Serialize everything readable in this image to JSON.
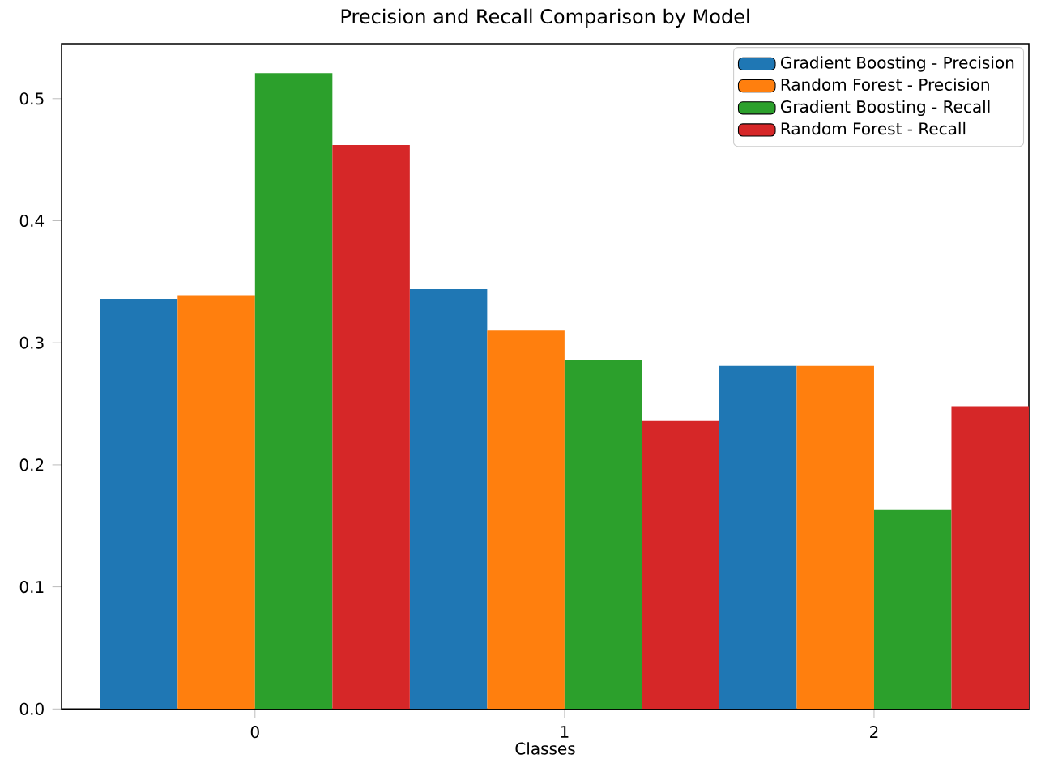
{
  "chart_data": {
    "type": "bar",
    "title": "Precision and Recall Comparison by Model",
    "xlabel": "Classes",
    "categories": [
      "0",
      "1",
      "2"
    ],
    "series": [
      {
        "name": "Gradient Boosting - Precision",
        "color": "#1f77b4",
        "values": [
          0.336,
          0.344,
          0.281
        ]
      },
      {
        "name": "Random Forest - Precision",
        "color": "#ff7f0e",
        "values": [
          0.339,
          0.31,
          0.281
        ]
      },
      {
        "name": "Gradient Boosting - Recall",
        "color": "#2ca02c",
        "values": [
          0.521,
          0.286,
          0.163
        ]
      },
      {
        "name": "Random Forest - Recall",
        "color": "#d62728",
        "values": [
          0.462,
          0.236,
          0.248
        ]
      }
    ],
    "ylim": [
      0,
      0.545
    ],
    "yticks": [
      {
        "value": 0,
        "label": "0.0"
      },
      {
        "value": 0.1,
        "label": "0.1"
      },
      {
        "value": 0.2,
        "label": "0.2"
      },
      {
        "value": 0.3,
        "label": "0.3"
      },
      {
        "value": 0.4,
        "label": "0.4"
      },
      {
        "value": 0.5,
        "label": "0.5"
      }
    ],
    "legend": "top right",
    "grid": false
  }
}
